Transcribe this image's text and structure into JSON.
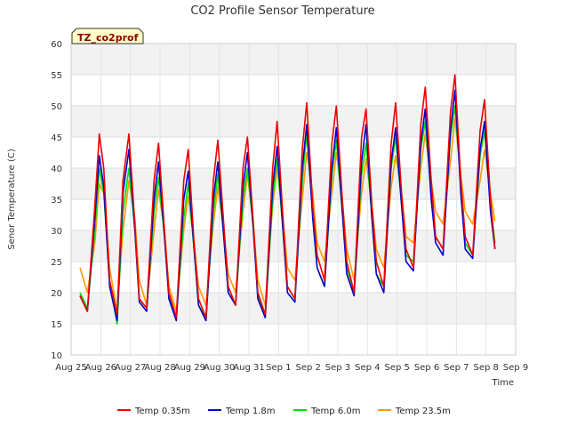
{
  "chart_data": {
    "type": "line",
    "title": "CO2 Profile Sensor Temperature",
    "xlabel": "Time",
    "ylabel": "Senor Temperature (C)",
    "tag": "TZ_co2prof",
    "ylim": [
      10,
      60
    ],
    "yticks": [
      10,
      15,
      20,
      25,
      30,
      35,
      40,
      45,
      50,
      55,
      60
    ],
    "xlim": [
      0,
      15
    ],
    "xtick_labels": [
      "Aug 25",
      "Aug 26",
      "Aug 27",
      "Aug 28",
      "Aug 29",
      "Aug 30",
      "Aug 31",
      "Sep 1",
      "Sep 2",
      "Sep 3",
      "Sep 4",
      "Sep 5",
      "Sep 6",
      "Sep 7",
      "Sep 8",
      "Sep 9"
    ],
    "x_start": "2023-08-25",
    "grid": true,
    "legend_position": "bottom",
    "series": [
      {
        "name": "Temp 0.35m",
        "color": "#ee0000",
        "x": [
          0.3,
          0.55,
          0.8,
          0.95,
          1.1,
          1.3,
          1.55,
          1.75,
          1.95,
          2.15,
          2.3,
          2.55,
          2.8,
          2.95,
          3.15,
          3.3,
          3.55,
          3.8,
          3.95,
          4.15,
          4.3,
          4.55,
          4.8,
          4.95,
          5.15,
          5.3,
          5.55,
          5.8,
          5.95,
          6.15,
          6.3,
          6.55,
          6.8,
          6.95,
          7.15,
          7.3,
          7.55,
          7.8,
          7.95,
          8.15,
          8.3,
          8.55,
          8.8,
          8.95,
          9.15,
          9.3,
          9.55,
          9.8,
          9.95,
          10.15,
          10.3,
          10.55,
          10.8,
          10.95,
          11.15,
          11.3,
          11.55,
          11.8,
          11.95,
          12.15,
          12.3,
          12.55,
          12.8,
          12.95,
          13.15,
          13.3,
          13.55,
          13.8,
          13.95,
          14.15,
          14.3
        ],
        "y": [
          19.5,
          17,
          34,
          45.5,
          40,
          22,
          16.5,
          38,
          45.5,
          31,
          19,
          17.5,
          38,
          44,
          30,
          20,
          16,
          38,
          43,
          28,
          19,
          16,
          38,
          44.5,
          31,
          21,
          18,
          40,
          45,
          31,
          20,
          16.5,
          40,
          47.5,
          32,
          21,
          19,
          43,
          50.5,
          34,
          26,
          22,
          44,
          50,
          35,
          25,
          20,
          45,
          49.5,
          34,
          25,
          21,
          44,
          50.5,
          36,
          27,
          24,
          47,
          53,
          38,
          29,
          27,
          49,
          55,
          38,
          29,
          26,
          46,
          51,
          35,
          27
        ]
      },
      {
        "name": "Temp 1.8m",
        "color": "#0000cc",
        "x": [
          0.3,
          0.55,
          0.8,
          0.95,
          1.1,
          1.3,
          1.55,
          1.75,
          1.95,
          2.15,
          2.3,
          2.55,
          2.8,
          2.95,
          3.15,
          3.3,
          3.55,
          3.8,
          3.95,
          4.15,
          4.3,
          4.55,
          4.8,
          4.95,
          5.15,
          5.3,
          5.55,
          5.8,
          5.95,
          6.15,
          6.3,
          6.55,
          6.8,
          6.95,
          7.15,
          7.3,
          7.55,
          7.8,
          7.95,
          8.15,
          8.3,
          8.55,
          8.8,
          8.95,
          9.15,
          9.3,
          9.55,
          9.8,
          9.95,
          10.15,
          10.3,
          10.55,
          10.8,
          10.95,
          11.15,
          11.3,
          11.55,
          11.8,
          11.95,
          12.15,
          12.3,
          12.55,
          12.8,
          12.95,
          13.15,
          13.3,
          13.55,
          13.8,
          13.95,
          14.15,
          14.3
        ],
        "y": [
          19.5,
          17,
          32,
          42,
          37,
          21,
          15.5,
          36,
          43,
          30,
          18.5,
          17,
          35,
          41,
          29,
          19,
          15.5,
          35,
          39.5,
          27,
          18,
          15.5,
          35,
          41,
          29,
          20,
          18,
          37,
          42.5,
          30,
          19,
          16,
          37,
          43.5,
          30,
          20,
          18.5,
          40,
          47,
          32,
          24,
          21,
          40,
          46.5,
          33,
          23,
          19.5,
          41,
          47,
          32,
          23,
          20,
          41,
          46.5,
          34,
          25,
          23.5,
          44,
          49.5,
          35,
          28,
          26,
          46,
          52.5,
          36,
          27,
          25.5,
          43,
          47.5,
          33,
          27
        ]
      },
      {
        "name": "Temp 6.0m",
        "color": "#00dd00",
        "x": [
          0.3,
          0.55,
          0.8,
          0.95,
          1.1,
          1.3,
          1.55,
          1.75,
          1.95,
          2.15,
          2.3,
          2.55,
          2.8,
          2.95,
          3.15,
          3.3,
          3.55,
          3.8,
          3.95,
          4.15,
          4.3,
          4.55,
          4.8,
          4.95,
          5.15,
          5.3,
          5.55,
          5.8,
          5.95,
          6.15,
          6.3,
          6.55,
          6.8,
          6.95,
          7.15,
          7.3,
          7.55,
          7.8,
          7.95,
          8.15,
          8.3,
          8.55,
          8.8,
          8.95,
          9.15,
          9.3,
          9.55,
          9.8,
          9.95,
          10.15,
          10.3,
          10.55,
          10.8,
          10.95,
          11.15,
          11.3,
          11.55,
          11.8,
          11.95,
          12.15,
          12.3,
          12.55,
          12.8,
          12.95,
          13.15,
          13.3,
          13.55,
          13.8,
          13.95,
          14.15,
          14.3
        ],
        "y": [
          20,
          17.5,
          30,
          40,
          36,
          22,
          15,
          33,
          40,
          30,
          19,
          17.5,
          33,
          38.5,
          29,
          19.5,
          16,
          32,
          37.5,
          27,
          18,
          16,
          33,
          39,
          29,
          20,
          18,
          35,
          40,
          30,
          19.5,
          16,
          35,
          41.5,
          30,
          21,
          19,
          38,
          45.5,
          33,
          24,
          21,
          39,
          44.5,
          33,
          24,
          20,
          39,
          44,
          32,
          23,
          21,
          40,
          45,
          34,
          26,
          25,
          43,
          47.5,
          36,
          29,
          27,
          45,
          50,
          38,
          28,
          26,
          42,
          46,
          34,
          28
        ]
      },
      {
        "name": "Temp 23.5m",
        "color": "#ff9900",
        "x": [
          0.3,
          0.55,
          0.8,
          0.95,
          1.1,
          1.3,
          1.55,
          1.75,
          1.95,
          2.15,
          2.3,
          2.55,
          2.8,
          2.95,
          3.15,
          3.3,
          3.55,
          3.8,
          3.95,
          4.15,
          4.3,
          4.55,
          4.8,
          4.95,
          5.15,
          5.3,
          5.55,
          5.8,
          5.95,
          6.15,
          6.3,
          6.55,
          6.8,
          6.95,
          7.15,
          7.3,
          7.55,
          7.8,
          7.95,
          8.15,
          8.3,
          8.55,
          8.8,
          8.95,
          9.15,
          9.3,
          9.55,
          9.8,
          9.95,
          10.15,
          10.3,
          10.55,
          10.8,
          10.95,
          11.15,
          11.3,
          11.55,
          11.8,
          11.95,
          12.15,
          12.3,
          12.55,
          12.8,
          12.95,
          13.15,
          13.3,
          13.55,
          13.8,
          13.95,
          14.15,
          14.3
        ],
        "y": [
          24,
          20,
          28,
          37.5,
          36,
          24,
          17,
          30,
          38,
          32,
          22,
          18,
          30,
          36.5,
          30,
          21,
          17,
          30,
          35.5,
          28,
          21,
          18,
          31,
          37,
          30,
          23,
          20,
          33,
          39,
          31,
          22,
          18,
          34,
          40,
          32,
          24,
          22,
          35,
          42.5,
          36,
          28,
          25,
          36,
          42.5,
          35,
          27,
          22,
          36,
          41.5,
          34,
          27,
          24,
          37,
          42,
          36,
          29,
          28,
          40,
          45.5,
          38,
          33,
          31,
          41,
          48,
          39,
          33,
          31,
          38,
          43,
          36,
          31.5
        ]
      }
    ]
  }
}
